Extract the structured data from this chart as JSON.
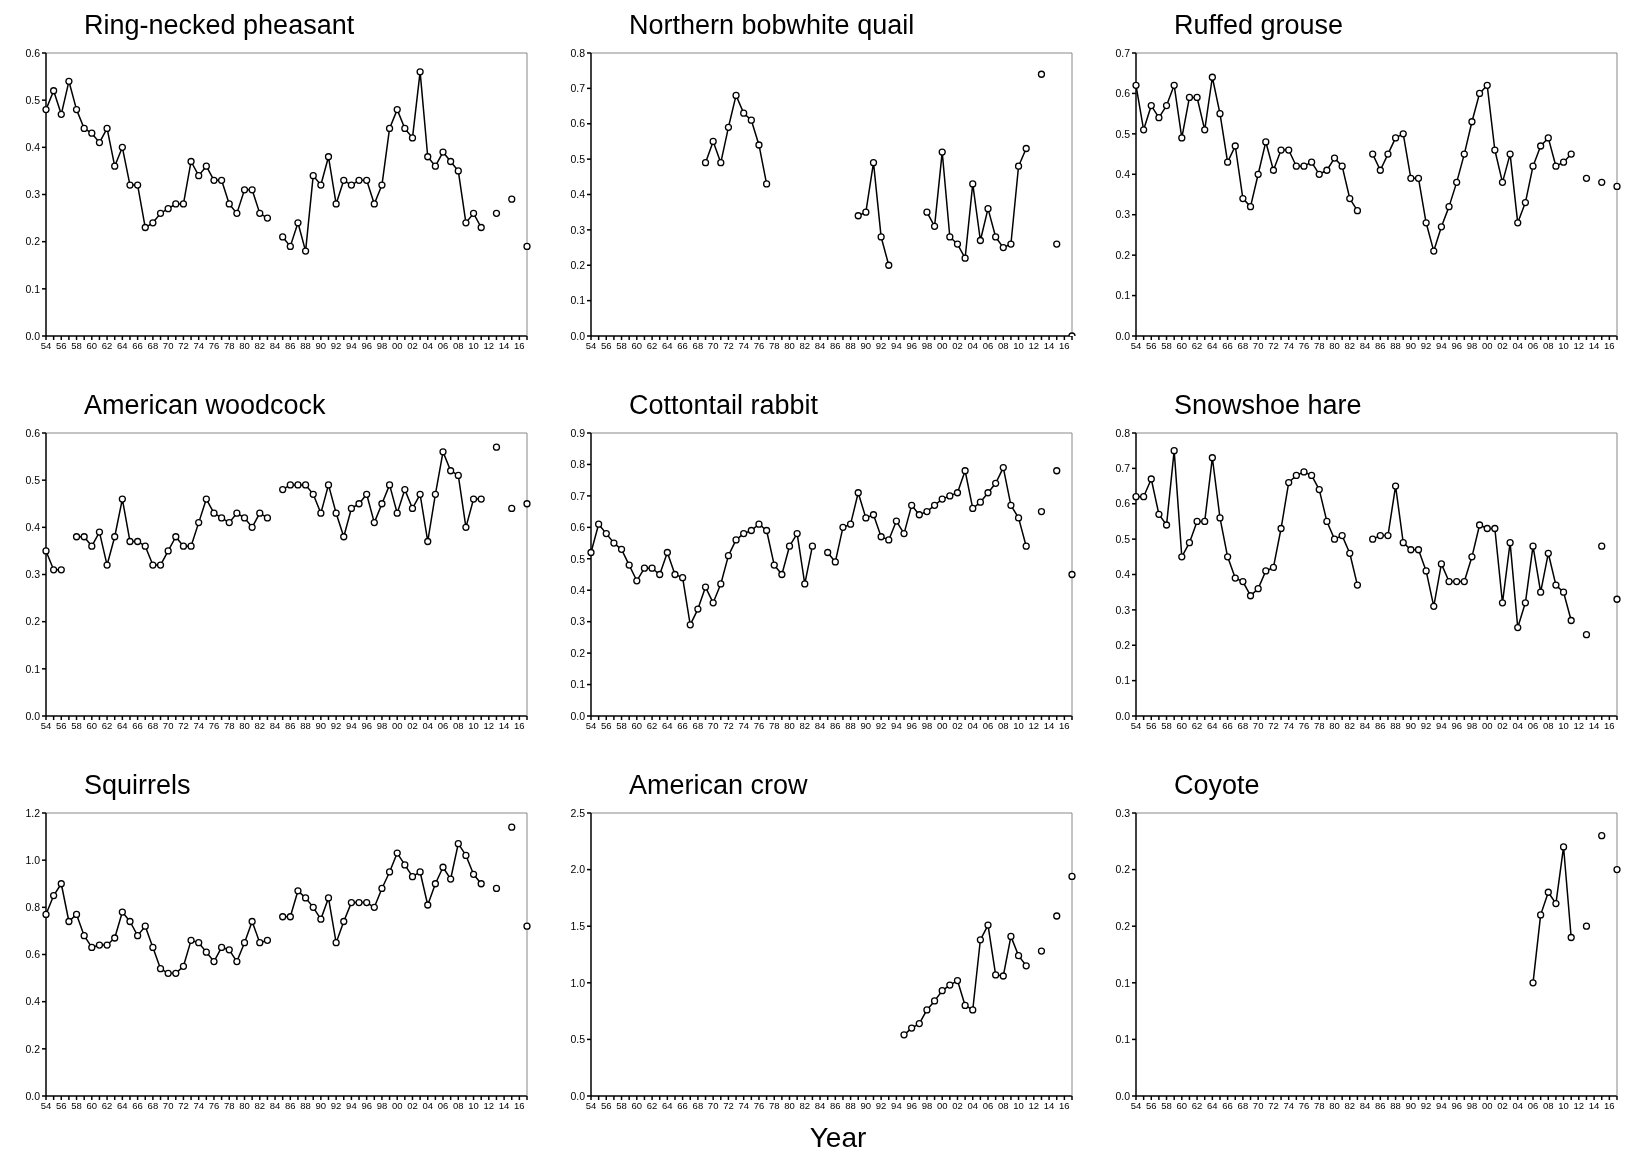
{
  "chart_data": [
    {
      "type": "line",
      "title": "Ring-necked pheasant",
      "color": "#000000",
      "marker": "circle",
      "categories": [
        "54",
        null,
        "56",
        null,
        "58",
        null,
        "60",
        null,
        "62",
        null,
        "64",
        null,
        "66",
        null,
        "68",
        null,
        "70",
        null,
        "72",
        null,
        "74",
        null,
        "76",
        null,
        "78",
        null,
        "80",
        null,
        "82",
        null,
        "84",
        null,
        "86",
        null,
        "88",
        null,
        "90",
        null,
        "92",
        null,
        "94",
        null,
        "96",
        null,
        "98",
        null,
        "00",
        null,
        "02",
        null,
        "04",
        null,
        "06",
        null,
        "08",
        null,
        "10",
        null,
        "12",
        null,
        "14",
        null,
        "16",
        null
      ],
      "values": [
        0.48,
        0.52,
        0.47,
        0.54,
        0.48,
        0.44,
        0.43,
        0.41,
        0.44,
        0.36,
        0.4,
        0.32,
        0.32,
        0.23,
        0.24,
        0.26,
        0.27,
        0.28,
        0.28,
        0.37,
        0.34,
        0.36,
        0.33,
        0.33,
        0.28,
        0.26,
        0.31,
        0.31,
        0.26,
        0.25,
        null,
        0.21,
        0.19,
        0.24,
        0.18,
        0.34,
        0.32,
        0.38,
        0.28,
        0.33,
        0.32,
        0.33,
        0.33,
        0.28,
        0.32,
        0.44,
        0.48,
        0.44,
        0.42,
        0.56,
        0.38,
        0.36,
        0.39,
        0.37,
        0.35,
        0.24,
        0.26,
        0.23,
        null,
        0.26,
        null,
        0.29,
        null,
        0.19
      ],
      "ylim": [
        0,
        0.6
      ],
      "yticks": [
        {
          "value": 0,
          "label": "0.0"
        },
        {
          "value": 0.1,
          "label": "0.1"
        },
        {
          "value": 0.2,
          "label": "0.2"
        },
        {
          "value": 0.3,
          "label": "0.3"
        },
        {
          "value": 0.4,
          "label": "0.4"
        },
        {
          "value": 0.5,
          "label": "0.5"
        },
        {
          "value": 0.6,
          "label": "0.6"
        }
      ]
    },
    {
      "type": "line",
      "title": "Northern bobwhite quail",
      "color": "#000000",
      "marker": "circle",
      "categories": [
        "54",
        null,
        "56",
        null,
        "58",
        null,
        "60",
        null,
        "62",
        null,
        "64",
        null,
        "66",
        null,
        "68",
        null,
        "70",
        null,
        "72",
        null,
        "74",
        null,
        "76",
        null,
        "78",
        null,
        "80",
        null,
        "82",
        null,
        "84",
        null,
        "86",
        null,
        "88",
        null,
        "90",
        null,
        "92",
        null,
        "94",
        null,
        "96",
        null,
        "98",
        null,
        "00",
        null,
        "02",
        null,
        "04",
        null,
        "06",
        null,
        "08",
        null,
        "10",
        null,
        "12",
        null,
        "14",
        null,
        "16",
        null
      ],
      "values": [
        null,
        null,
        null,
        null,
        null,
        null,
        null,
        null,
        null,
        null,
        null,
        null,
        null,
        null,
        null,
        0.49,
        0.55,
        0.49,
        0.59,
        0.68,
        0.63,
        0.61,
        0.54,
        0.43,
        null,
        null,
        null,
        null,
        null,
        null,
        null,
        null,
        null,
        null,
        null,
        0.34,
        0.35,
        0.49,
        0.28,
        0.2,
        null,
        null,
        null,
        null,
        0.35,
        0.31,
        0.52,
        0.28,
        0.26,
        0.22,
        0.43,
        0.27,
        0.36,
        0.28,
        0.25,
        0.26,
        0.48,
        0.53,
        null,
        0.74,
        null,
        0.26,
        null,
        0
      ],
      "ylim": [
        0,
        0.8
      ],
      "yticks": [
        {
          "value": 0,
          "label": "0.0"
        },
        {
          "value": 0.1,
          "label": "0.1"
        },
        {
          "value": 0.2,
          "label": "0.2"
        },
        {
          "value": 0.3,
          "label": "0.3"
        },
        {
          "value": 0.4,
          "label": "0.4"
        },
        {
          "value": 0.5,
          "label": "0.5"
        },
        {
          "value": 0.6,
          "label": "0.6"
        },
        {
          "value": 0.7,
          "label": "0.7"
        },
        {
          "value": 0.8,
          "label": "0.8"
        }
      ]
    },
    {
      "type": "line",
      "title": "Ruffed grouse",
      "color": "#000000",
      "marker": "circle",
      "categories": [
        "54",
        null,
        "56",
        null,
        "58",
        null,
        "60",
        null,
        "62",
        null,
        "64",
        null,
        "66",
        null,
        "68",
        null,
        "70",
        null,
        "72",
        null,
        "74",
        null,
        "76",
        null,
        "78",
        null,
        "80",
        null,
        "82",
        null,
        "84",
        null,
        "86",
        null,
        "88",
        null,
        "90",
        null,
        "92",
        null,
        "94",
        null,
        "96",
        null,
        "98",
        null,
        "00",
        null,
        "02",
        null,
        "04",
        null,
        "06",
        null,
        "08",
        null,
        "10",
        null,
        "12",
        null,
        "14",
        null,
        "16",
        null
      ],
      "values": [
        0.62,
        0.51,
        0.57,
        0.54,
        0.57,
        0.62,
        0.49,
        0.59,
        0.59,
        0.51,
        0.64,
        0.55,
        0.43,
        0.47,
        0.34,
        0.32,
        0.4,
        0.48,
        0.41,
        0.46,
        0.46,
        0.42,
        0.42,
        0.43,
        0.4,
        0.41,
        0.44,
        0.42,
        0.34,
        0.31,
        null,
        0.45,
        0.41,
        0.45,
        0.49,
        0.5,
        0.39,
        0.39,
        0.28,
        0.21,
        0.27,
        0.32,
        0.38,
        0.45,
        0.53,
        0.6,
        0.62,
        0.46,
        0.38,
        0.45,
        0.28,
        0.33,
        0.42,
        0.47,
        0.49,
        0.42,
        0.43,
        0.45,
        null,
        0.39,
        null,
        0.38,
        null,
        0.37
      ],
      "ylim": [
        0,
        0.7
      ],
      "yticks": [
        {
          "value": 0,
          "label": "0.0"
        },
        {
          "value": 0.1,
          "label": "0.1"
        },
        {
          "value": 0.2,
          "label": "0.2"
        },
        {
          "value": 0.3,
          "label": "0.3"
        },
        {
          "value": 0.4,
          "label": "0.4"
        },
        {
          "value": 0.5,
          "label": "0.5"
        },
        {
          "value": 0.6,
          "label": "0.6"
        },
        {
          "value": 0.7,
          "label": "0.7"
        }
      ]
    },
    {
      "type": "line",
      "title": "American woodcock",
      "color": "#000000",
      "marker": "circle",
      "categories": [
        "54",
        null,
        "56",
        null,
        "58",
        null,
        "60",
        null,
        "62",
        null,
        "64",
        null,
        "66",
        null,
        "68",
        null,
        "70",
        null,
        "72",
        null,
        "74",
        null,
        "76",
        null,
        "78",
        null,
        "80",
        null,
        "82",
        null,
        "84",
        null,
        "86",
        null,
        "88",
        null,
        "90",
        null,
        "92",
        null,
        "94",
        null,
        "96",
        null,
        "98",
        null,
        "00",
        null,
        "02",
        null,
        "04",
        null,
        "06",
        null,
        "08",
        null,
        "10",
        null,
        "12",
        null,
        "14",
        null,
        "16",
        null
      ],
      "values": [
        0.35,
        0.31,
        0.31,
        null,
        0.38,
        0.38,
        0.36,
        0.39,
        0.32,
        0.38,
        0.46,
        0.37,
        0.37,
        0.36,
        0.32,
        0.32,
        0.35,
        0.38,
        0.36,
        0.36,
        0.41,
        0.46,
        0.43,
        0.42,
        0.41,
        0.43,
        0.42,
        0.4,
        0.43,
        0.42,
        null,
        0.48,
        0.49,
        0.49,
        0.49,
        0.47,
        0.43,
        0.49,
        0.43,
        0.38,
        0.44,
        0.45,
        0.47,
        0.41,
        0.45,
        0.49,
        0.43,
        0.48,
        0.44,
        0.47,
        0.37,
        0.47,
        0.56,
        0.52,
        0.51,
        0.4,
        0.46,
        0.46,
        null,
        0.57,
        null,
        0.44,
        null,
        0.45
      ],
      "ylim": [
        0,
        0.6
      ],
      "yticks": [
        {
          "value": 0,
          "label": "0.0"
        },
        {
          "value": 0.1,
          "label": "0.1"
        },
        {
          "value": 0.2,
          "label": "0.2"
        },
        {
          "value": 0.3,
          "label": "0.3"
        },
        {
          "value": 0.4,
          "label": "0.4"
        },
        {
          "value": 0.5,
          "label": "0.5"
        },
        {
          "value": 0.6,
          "label": "0.6"
        }
      ]
    },
    {
      "type": "line",
      "title": "Cottontail rabbit",
      "color": "#000000",
      "marker": "circle",
      "categories": [
        "54",
        null,
        "56",
        null,
        "58",
        null,
        "60",
        null,
        "62",
        null,
        "64",
        null,
        "66",
        null,
        "68",
        null,
        "70",
        null,
        "72",
        null,
        "74",
        null,
        "76",
        null,
        "78",
        null,
        "80",
        null,
        "82",
        null,
        "84",
        null,
        "86",
        null,
        "88",
        null,
        "90",
        null,
        "92",
        null,
        "94",
        null,
        "96",
        null,
        "98",
        null,
        "00",
        null,
        "02",
        null,
        "04",
        null,
        "06",
        null,
        "08",
        null,
        "10",
        null,
        "12",
        null,
        "14",
        null,
        "16",
        null
      ],
      "values": [
        0.52,
        0.61,
        0.58,
        0.55,
        0.53,
        0.48,
        0.43,
        0.47,
        0.47,
        0.45,
        0.52,
        0.45,
        0.44,
        0.29,
        0.34,
        0.41,
        0.36,
        0.42,
        0.51,
        0.56,
        0.58,
        0.59,
        0.61,
        0.59,
        0.48,
        0.45,
        0.54,
        0.58,
        0.42,
        0.54,
        null,
        0.52,
        0.49,
        0.6,
        0.61,
        0.71,
        0.63,
        0.64,
        0.57,
        0.56,
        0.62,
        0.58,
        0.67,
        0.64,
        0.65,
        0.67,
        0.69,
        0.7,
        0.71,
        0.78,
        0.66,
        0.68,
        0.71,
        0.74,
        0.79,
        0.67,
        0.63,
        0.54,
        null,
        0.65,
        null,
        0.78,
        null,
        0.45
      ],
      "ylim": [
        0,
        0.9
      ],
      "yticks": [
        {
          "value": 0,
          "label": "0.0"
        },
        {
          "value": 0.1,
          "label": "0.1"
        },
        {
          "value": 0.2,
          "label": "0.2"
        },
        {
          "value": 0.3,
          "label": "0.3"
        },
        {
          "value": 0.4,
          "label": "0.4"
        },
        {
          "value": 0.5,
          "label": "0.5"
        },
        {
          "value": 0.6,
          "label": "0.6"
        },
        {
          "value": 0.7,
          "label": "0.7"
        },
        {
          "value": 0.8,
          "label": "0.8"
        },
        {
          "value": 0.9,
          "label": "0.9"
        }
      ]
    },
    {
      "type": "line",
      "title": "Snowshoe hare",
      "color": "#000000",
      "marker": "circle",
      "categories": [
        "54",
        null,
        "56",
        null,
        "58",
        null,
        "60",
        null,
        "62",
        null,
        "64",
        null,
        "66",
        null,
        "68",
        null,
        "70",
        null,
        "72",
        null,
        "74",
        null,
        "76",
        null,
        "78",
        null,
        "80",
        null,
        "82",
        null,
        "84",
        null,
        "86",
        null,
        "88",
        null,
        "90",
        null,
        "92",
        null,
        "94",
        null,
        "96",
        null,
        "98",
        null,
        "00",
        null,
        "02",
        null,
        "04",
        null,
        "06",
        null,
        "08",
        null,
        "10",
        null,
        "12",
        null,
        "14",
        null,
        "16",
        null
      ],
      "values": [
        0.62,
        0.62,
        0.67,
        0.57,
        0.54,
        0.75,
        0.45,
        0.49,
        0.55,
        0.55,
        0.73,
        0.56,
        0.45,
        0.39,
        0.38,
        0.34,
        0.36,
        0.41,
        0.42,
        0.53,
        0.66,
        0.68,
        0.69,
        0.68,
        0.64,
        0.55,
        0.5,
        0.51,
        0.46,
        0.37,
        null,
        0.5,
        0.51,
        0.51,
        0.65,
        0.49,
        0.47,
        0.47,
        0.41,
        0.31,
        0.43,
        0.38,
        0.38,
        0.38,
        0.45,
        0.54,
        0.53,
        0.53,
        0.32,
        0.49,
        0.25,
        0.32,
        0.48,
        0.35,
        0.46,
        0.37,
        0.35,
        0.27,
        null,
        0.23,
        null,
        0.48,
        null,
        0.33
      ],
      "ylim": [
        0,
        0.8
      ],
      "yticks": [
        {
          "value": 0,
          "label": "0.0"
        },
        {
          "value": 0.1,
          "label": "0.1"
        },
        {
          "value": 0.2,
          "label": "0.2"
        },
        {
          "value": 0.3,
          "label": "0.3"
        },
        {
          "value": 0.4,
          "label": "0.4"
        },
        {
          "value": 0.5,
          "label": "0.5"
        },
        {
          "value": 0.6,
          "label": "0.6"
        },
        {
          "value": 0.7,
          "label": "0.7"
        },
        {
          "value": 0.8,
          "label": "0.8"
        }
      ]
    },
    {
      "type": "line",
      "title": "Squirrels",
      "color": "#000000",
      "marker": "circle",
      "categories": [
        "54",
        null,
        "56",
        null,
        "58",
        null,
        "60",
        null,
        "62",
        null,
        "64",
        null,
        "66",
        null,
        "68",
        null,
        "70",
        null,
        "72",
        null,
        "74",
        null,
        "76",
        null,
        "78",
        null,
        "80",
        null,
        "82",
        null,
        "84",
        null,
        "86",
        null,
        "88",
        null,
        "90",
        null,
        "92",
        null,
        "94",
        null,
        "96",
        null,
        "98",
        null,
        "00",
        null,
        "02",
        null,
        "04",
        null,
        "06",
        null,
        "08",
        null,
        "10",
        null,
        "12",
        null,
        "14",
        null,
        "16",
        null
      ],
      "values": [
        0.77,
        0.85,
        0.9,
        0.74,
        0.77,
        0.68,
        0.63,
        0.64,
        0.64,
        0.67,
        0.78,
        0.74,
        0.68,
        0.72,
        0.63,
        0.54,
        0.52,
        0.52,
        0.55,
        0.66,
        0.65,
        0.61,
        0.57,
        0.63,
        0.62,
        0.57,
        0.65,
        0.74,
        0.65,
        0.66,
        null,
        0.76,
        0.76,
        0.87,
        0.84,
        0.8,
        0.75,
        0.84,
        0.65,
        0.74,
        0.82,
        0.82,
        0.82,
        0.8,
        0.88,
        0.95,
        1.03,
        0.98,
        0.93,
        0.95,
        0.81,
        0.9,
        0.97,
        0.92,
        1.07,
        1.02,
        0.94,
        0.9,
        null,
        0.88,
        null,
        1.14,
        null,
        0.72
      ],
      "ylim": [
        0,
        1.2
      ],
      "yticks": [
        {
          "value": 0,
          "label": "0.0"
        },
        {
          "value": 0.2,
          "label": "0.2"
        },
        {
          "value": 0.4,
          "label": "0.4"
        },
        {
          "value": 0.6,
          "label": "0.6"
        },
        {
          "value": 0.8,
          "label": "0.8"
        },
        {
          "value": 1,
          "label": "1.0"
        },
        {
          "value": 1.2,
          "label": "1.2"
        }
      ]
    },
    {
      "type": "line",
      "title": "American crow",
      "xlabel": "Year",
      "color": "#000000",
      "marker": "circle",
      "categories": [
        "54",
        null,
        "56",
        null,
        "58",
        null,
        "60",
        null,
        "62",
        null,
        "64",
        null,
        "66",
        null,
        "68",
        null,
        "70",
        null,
        "72",
        null,
        "74",
        null,
        "76",
        null,
        "78",
        null,
        "80",
        null,
        "82",
        null,
        "84",
        null,
        "86",
        null,
        "88",
        null,
        "90",
        null,
        "92",
        null,
        "94",
        null,
        "96",
        null,
        "98",
        null,
        "00",
        null,
        "02",
        null,
        "04",
        null,
        "06",
        null,
        "08",
        null,
        "10",
        null,
        "12",
        null,
        "14",
        null,
        "16",
        null
      ],
      "values": [
        null,
        null,
        null,
        null,
        null,
        null,
        null,
        null,
        null,
        null,
        null,
        null,
        null,
        null,
        null,
        null,
        null,
        null,
        null,
        null,
        null,
        null,
        null,
        null,
        null,
        null,
        null,
        null,
        null,
        null,
        null,
        null,
        null,
        null,
        null,
        null,
        null,
        null,
        null,
        null,
        null,
        0.54,
        0.6,
        0.64,
        0.76,
        0.84,
        0.93,
        0.98,
        1.02,
        0.8,
        0.76,
        1.38,
        1.51,
        1.07,
        1.06,
        1.41,
        1.24,
        1.15,
        null,
        1.28,
        null,
        1.59,
        null,
        1.94
      ],
      "ylim": [
        0,
        2.5
      ],
      "yticks": [
        {
          "value": 0,
          "label": "0.0"
        },
        {
          "value": 0.5,
          "label": "0.5"
        },
        {
          "value": 1,
          "label": "1.0"
        },
        {
          "value": 1.5,
          "label": "1.5"
        },
        {
          "value": 2,
          "label": "2.0"
        },
        {
          "value": 2.5,
          "label": "2.5"
        }
      ]
    },
    {
      "type": "line",
      "title": "Coyote",
      "color": "#000000",
      "marker": "circle",
      "categories": [
        "54",
        null,
        "56",
        null,
        "58",
        null,
        "60",
        null,
        "62",
        null,
        "64",
        null,
        "66",
        null,
        "68",
        null,
        "70",
        null,
        "72",
        null,
        "74",
        null,
        "76",
        null,
        "78",
        null,
        "80",
        null,
        "82",
        null,
        "84",
        null,
        "86",
        null,
        "88",
        null,
        "90",
        null,
        "92",
        null,
        "94",
        null,
        "96",
        null,
        "98",
        null,
        "00",
        null,
        "02",
        null,
        "04",
        null,
        "06",
        null,
        "08",
        null,
        "10",
        null,
        "12",
        null,
        "14",
        null,
        "16",
        null
      ],
      "values": [
        null,
        null,
        null,
        null,
        null,
        null,
        null,
        null,
        null,
        null,
        null,
        null,
        null,
        null,
        null,
        null,
        null,
        null,
        null,
        null,
        null,
        null,
        null,
        null,
        null,
        null,
        null,
        null,
        null,
        null,
        null,
        null,
        null,
        null,
        null,
        null,
        null,
        null,
        null,
        null,
        null,
        null,
        null,
        null,
        null,
        null,
        null,
        null,
        null,
        null,
        null,
        null,
        0.1,
        0.16,
        0.18,
        0.17,
        0.22,
        0.14,
        null,
        0.15,
        null,
        0.23,
        null,
        0.2
      ],
      "ylim": [
        0,
        0.25
      ],
      "yticks": [
        {
          "value": 0,
          "label": "0.0"
        },
        {
          "value": 0.05,
          "label": "0.1"
        },
        {
          "value": 0.1,
          "label": "0.1"
        },
        {
          "value": 0.15,
          "label": "0.2"
        },
        {
          "value": 0.2,
          "label": "0.2"
        },
        {
          "value": 0.25,
          "label": "0.3"
        }
      ]
    }
  ]
}
